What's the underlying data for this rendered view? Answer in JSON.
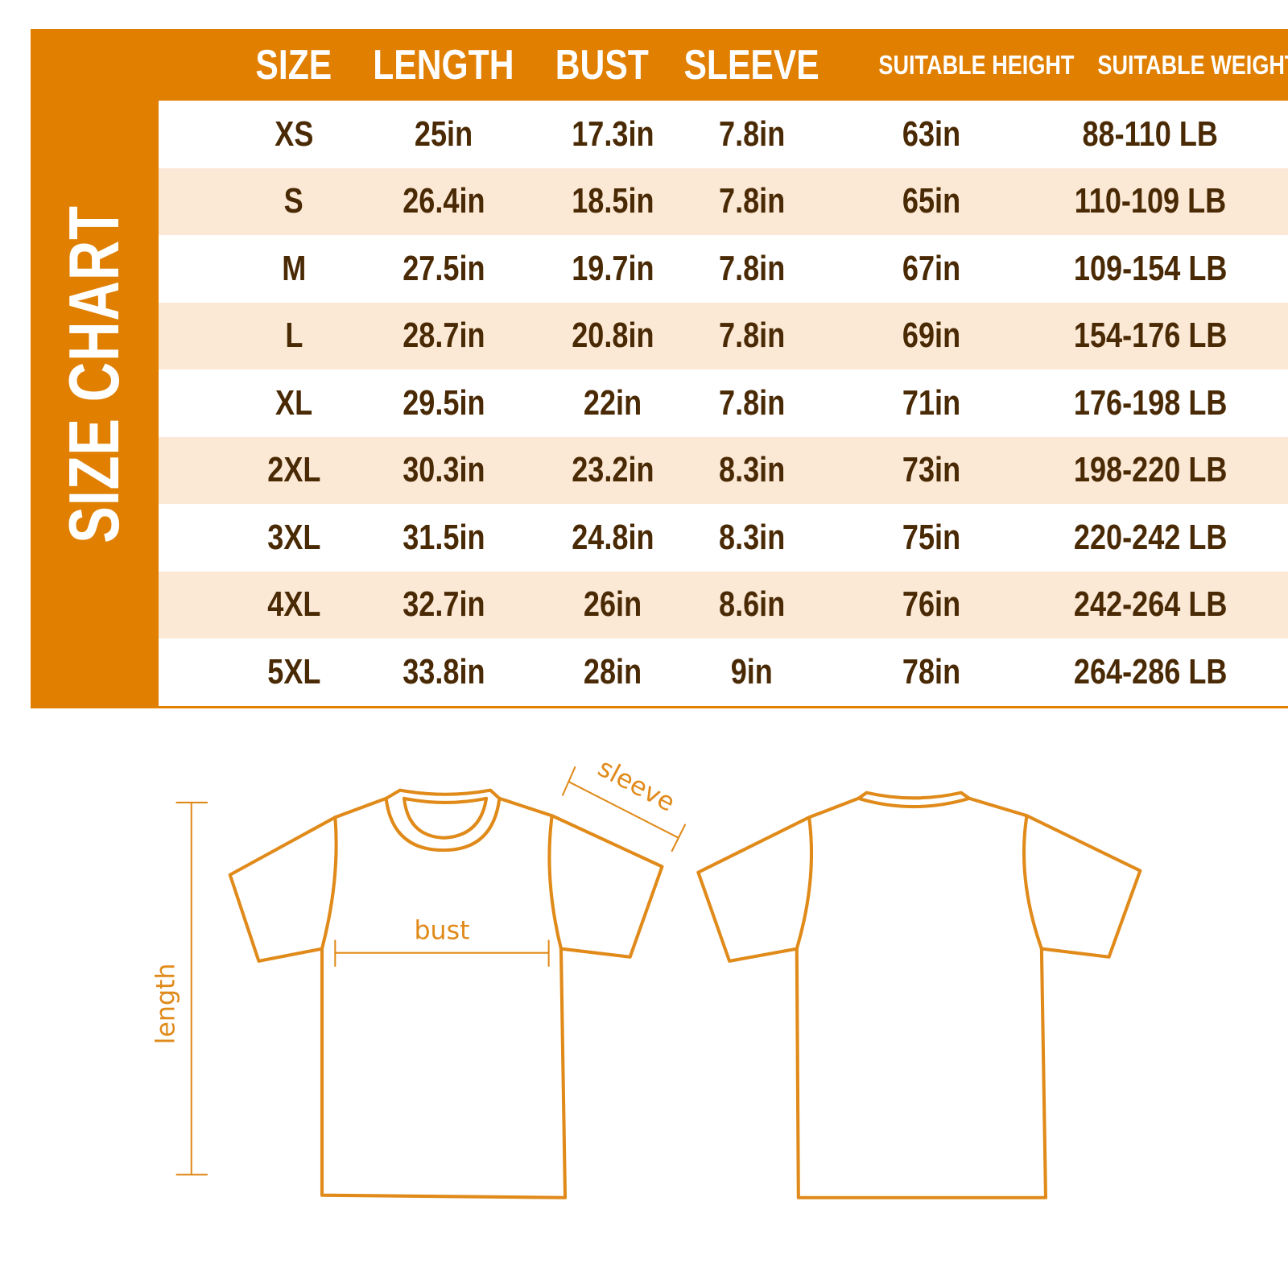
{
  "side_title": "SIZE CHART",
  "colors": {
    "accent": "#e07f00",
    "stripe": "#fbe9d6",
    "text": "#4a2a05"
  },
  "table": {
    "headers": [
      "SIZE",
      "LENGTH",
      "BUST",
      "SLEEVE",
      "SUITABLE HEIGHT",
      "SUITABLE WEIGHT"
    ],
    "rows": [
      [
        "XS",
        "25in",
        "17.3in",
        "7.8in",
        "63in",
        "88-110 LB"
      ],
      [
        "S",
        "26.4in",
        "18.5in",
        "7.8in",
        "65in",
        "110-109 LB"
      ],
      [
        "M",
        "27.5in",
        "19.7in",
        "7.8in",
        "67in",
        "109-154 LB"
      ],
      [
        "L",
        "28.7in",
        "20.8in",
        "7.8in",
        "69in",
        "154-176 LB"
      ],
      [
        "XL",
        "29.5in",
        "22in",
        "7.8in",
        "71in",
        "176-198 LB"
      ],
      [
        "2XL",
        "30.3in",
        "23.2in",
        "8.3in",
        "73in",
        "198-220 LB"
      ],
      [
        "3XL",
        "31.5in",
        "24.8in",
        "8.3in",
        "75in",
        "220-242 LB"
      ],
      [
        "4XL",
        "32.7in",
        "26in",
        "8.6in",
        "76in",
        "242-264 LB"
      ],
      [
        "5XL",
        "33.8in",
        "28in",
        "9in",
        "78in",
        "264-286 LB"
      ]
    ]
  },
  "diagram": {
    "length_label": "length",
    "bust_label": "bust",
    "sleeve_label": "sleeve"
  }
}
